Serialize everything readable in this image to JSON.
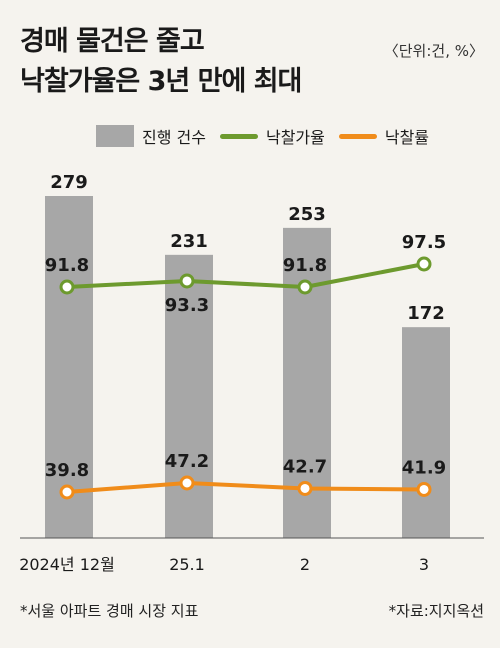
{
  "title": {
    "line1": "경매 물건은 줄고",
    "line2": "낙찰가율은 3년 만에 최대"
  },
  "unit": "〈단위:건, %〉",
  "footer": {
    "left": "*서울 아파트 경매 시장 지표",
    "right": "*자료:지지옥션"
  },
  "chart_data": {
    "type": "bar",
    "categories": [
      "2024년 12월",
      "25.1",
      "2",
      "3"
    ],
    "series": [
      {
        "name": "진행 건수",
        "kind": "bar",
        "color": "#a7a7a7",
        "values": [
          279,
          231,
          253,
          172
        ]
      },
      {
        "name": "낙찰가율",
        "kind": "line",
        "color": "#6d9a2e",
        "values": [
          91.8,
          93.3,
          91.8,
          97.5
        ]
      },
      {
        "name": "낙찰률",
        "kind": "line",
        "color": "#f08c1a",
        "values": [
          39.8,
          47.2,
          42.7,
          41.9
        ]
      }
    ]
  }
}
